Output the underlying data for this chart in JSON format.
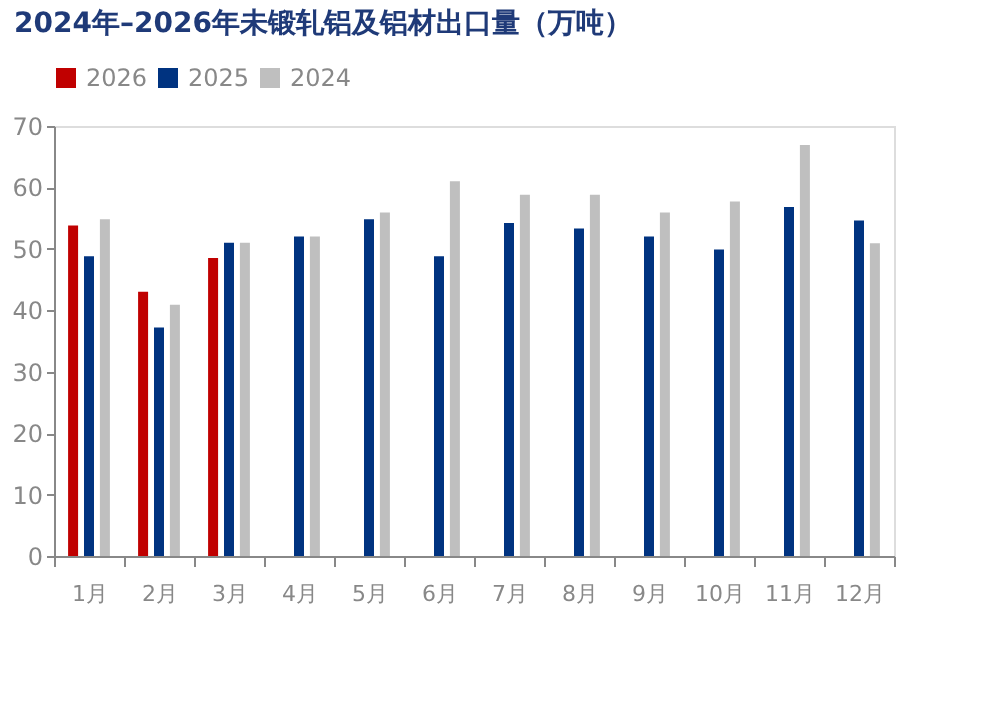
{
  "chart_data": {
    "type": "bar",
    "title": "2024年–2026年未锻轧铝及铝材出口量（万吨）",
    "categories": [
      "1月",
      "2月",
      "3月",
      "4月",
      "5月",
      "6月",
      "7月",
      "8月",
      "9月",
      "10月",
      "11月",
      "12月"
    ],
    "series": [
      {
        "name": "2026",
        "color": "#c00000",
        "values": [
          53.8,
          43,
          48.5,
          null,
          null,
          null,
          null,
          null,
          null,
          null,
          null,
          null
        ]
      },
      {
        "name": "2025",
        "color": "#003380",
        "values": [
          48.8,
          37.2,
          51,
          52,
          54.8,
          48.8,
          54.2,
          53.3,
          52,
          49.9,
          56.8,
          54.6
        ]
      },
      {
        "name": "2024",
        "color": "#bfbfbf",
        "values": [
          54.8,
          40.9,
          51,
          52,
          55.9,
          61,
          58.8,
          58.8,
          55.9,
          57.7,
          66.9,
          50.9
        ]
      }
    ],
    "ylim": [
      0,
      70
    ],
    "yticks": [
      0,
      10,
      20,
      30,
      40,
      50,
      60,
      70
    ],
    "grid": false,
    "legend": "top"
  }
}
